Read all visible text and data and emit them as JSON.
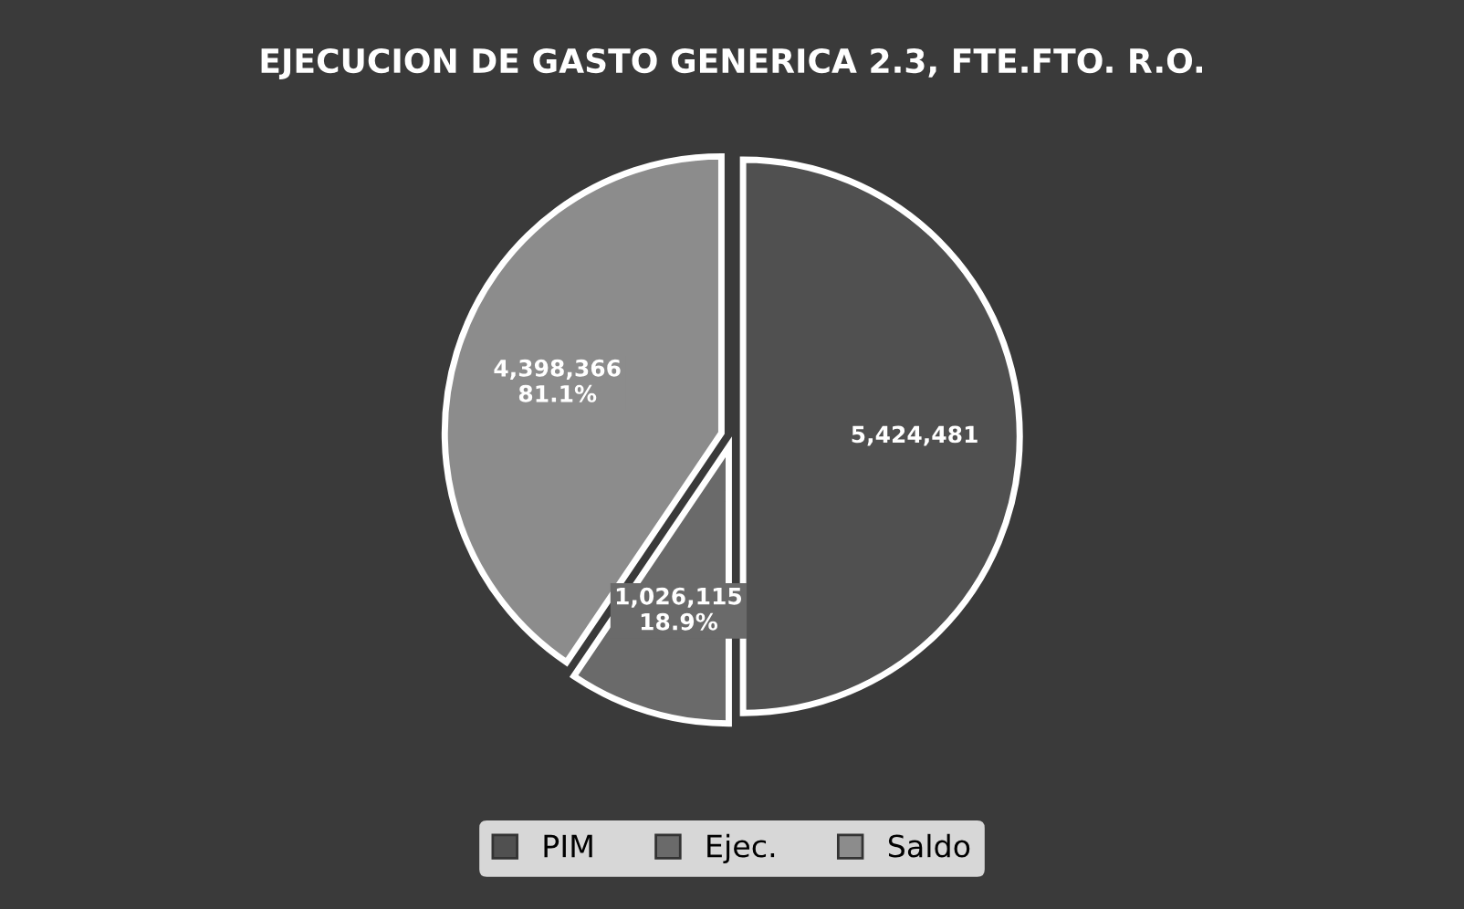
{
  "chart_data": {
    "type": "pie",
    "title": "EJECUCION DE GASTO GENERICA 2.3, FTE.FTO. R.O.",
    "categories": [
      "PIM",
      "Ejec.",
      "Saldo"
    ],
    "values": [
      5424481,
      1026115,
      4398366
    ],
    "colors": [
      "#505050",
      "#6a6a6a",
      "#8c8c8c"
    ],
    "value_labels": [
      "5,424,481",
      "1,026,115\n18.9%",
      "4,398,366\n81.1%"
    ],
    "legend": "bottom"
  }
}
